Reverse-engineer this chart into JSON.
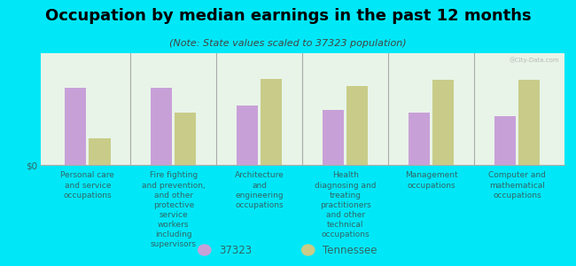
{
  "title": "Occupation by median earnings in the past 12 months",
  "subtitle": "(Note: State values scaled to 37323 population)",
  "categories": [
    "Personal care\nand service\noccupations",
    "Fire fighting\nand prevention,\nand other\nprotective\nservice\nworkers\nincluding\nsupervisors",
    "Architecture\nand\nengineering\noccupations",
    "Health\ndiagnosing and\ntreating\npractitioners\nand other\ntechnical\noccupations",
    "Management\noccupations",
    "Computer and\nmathematical\noccupations"
  ],
  "values_37323": [
    0.52,
    0.52,
    0.4,
    0.37,
    0.35,
    0.33
  ],
  "values_tennessee": [
    0.18,
    0.35,
    0.58,
    0.53,
    0.57,
    0.57
  ],
  "color_37323": "#c8a0d8",
  "color_tennessee": "#c8cc88",
  "background_color": "#00e8f8",
  "plot_bg_color": "#dff0d8",
  "ylabel": "$0",
  "legend_37323": "37323",
  "legend_tennessee": "Tennessee",
  "watermark": "@City-Data.com",
  "title_fontsize": 13,
  "subtitle_fontsize": 8,
  "tick_label_fontsize": 6.5,
  "ylabel_fontsize": 7.5,
  "legend_fontsize": 8.5,
  "divider_color": "#aaaaaa",
  "text_color": "#336666"
}
